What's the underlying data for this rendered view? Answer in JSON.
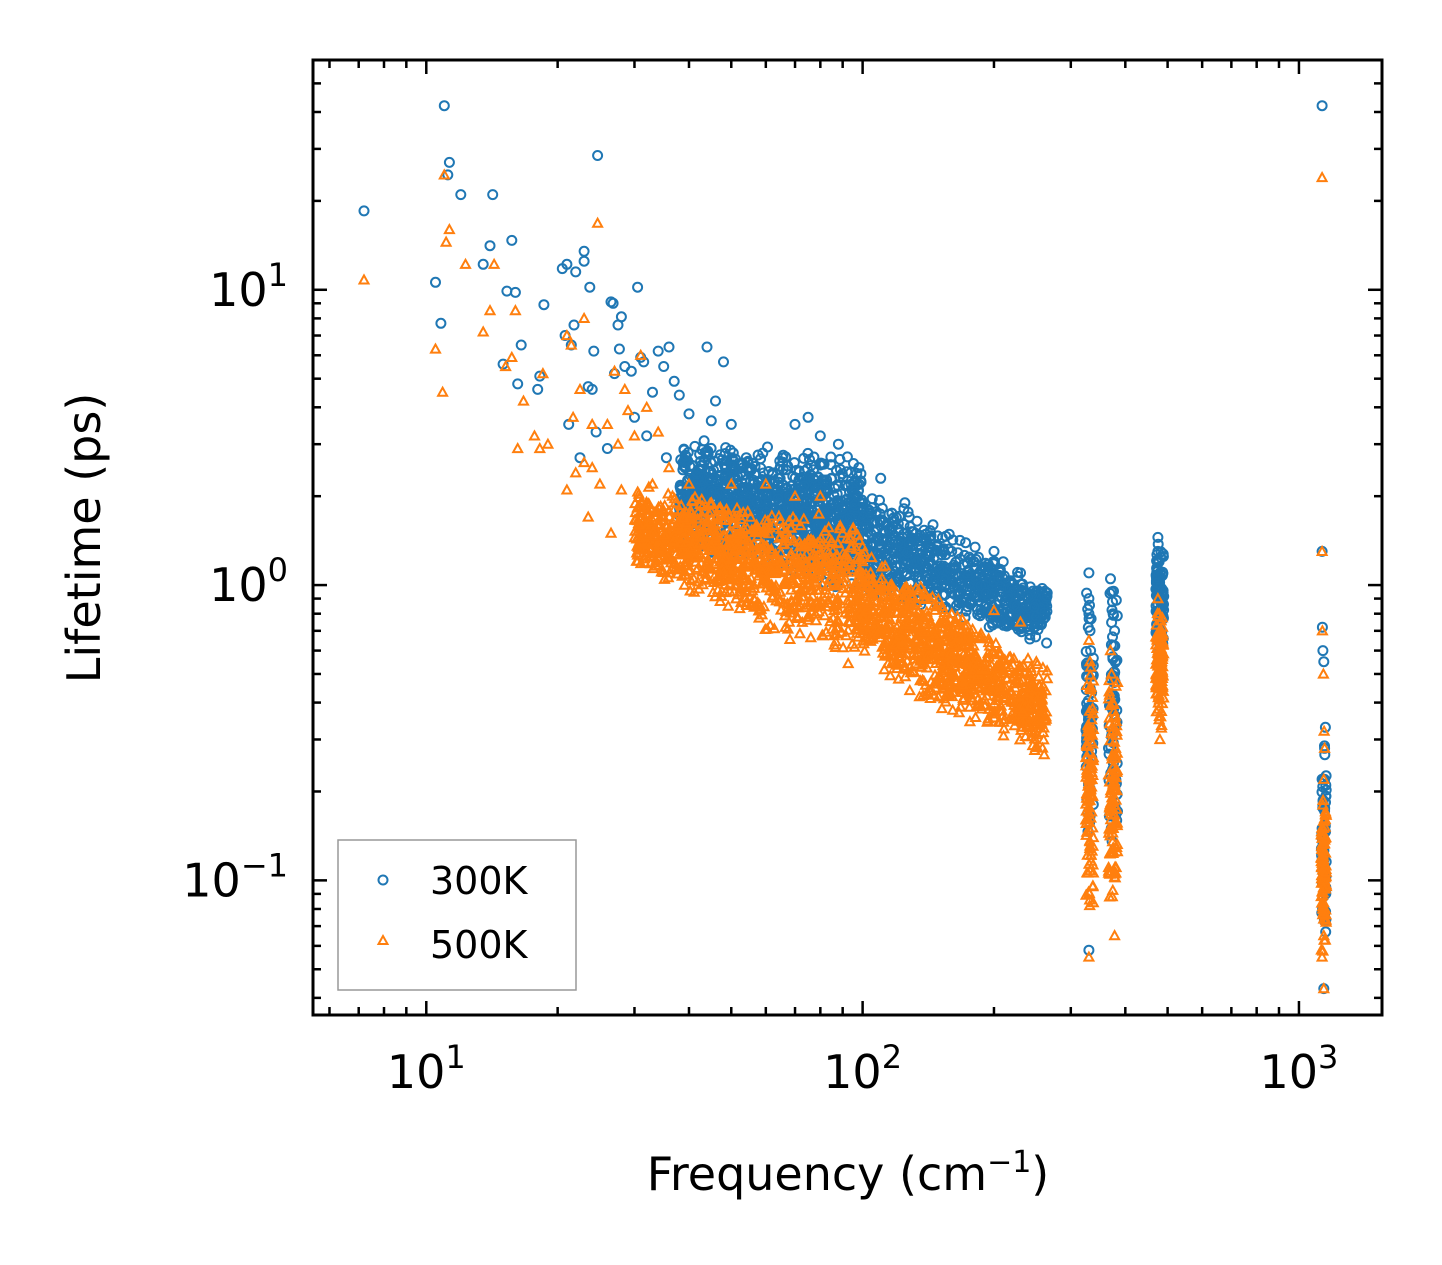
{
  "chart_data": {
    "type": "scatter",
    "xscale": "log",
    "yscale": "log",
    "xlim": [
      5.5,
      1550
    ],
    "ylim": [
      0.035,
      60
    ],
    "x_ticks": [
      {
        "value": 10,
        "base": "10",
        "exp": "1"
      },
      {
        "value": 100,
        "base": "10",
        "exp": "2"
      },
      {
        "value": 1000,
        "base": "10",
        "exp": "3"
      }
    ],
    "y_ticks": [
      {
        "value": 0.1,
        "base": "10",
        "exp": "−1"
      },
      {
        "value": 1,
        "base": "10",
        "exp": "0"
      },
      {
        "value": 10,
        "base": "10",
        "exp": "1"
      }
    ],
    "xlabel": {
      "text": "Frequency (cm",
      "sup": "−1",
      "tail": ")"
    },
    "ylabel": "Lifetime (ps)",
    "legend_position": "lower-left",
    "series": [
      {
        "name": "300K",
        "marker": "circle",
        "color": "#1f77b4",
        "points": [
          [
            7.2,
            18.5
          ],
          [
            10.5,
            10.6
          ],
          [
            10.8,
            7.7
          ],
          [
            11,
            42
          ],
          [
            11.3,
            27
          ],
          [
            11.2,
            24.5
          ],
          [
            12,
            21
          ],
          [
            13.5,
            12.2
          ],
          [
            14,
            14.1
          ],
          [
            14.2,
            21
          ],
          [
            15,
            5.6
          ],
          [
            15.3,
            9.9
          ],
          [
            15.7,
            14.7
          ],
          [
            16,
            9.8
          ],
          [
            16.2,
            4.8
          ],
          [
            16.5,
            6.5
          ],
          [
            18,
            4.6
          ],
          [
            18.2,
            5.1
          ],
          [
            18.6,
            8.9
          ],
          [
            20.5,
            11.8
          ],
          [
            20.8,
            7
          ],
          [
            21,
            12.2
          ],
          [
            21.2,
            3.5
          ],
          [
            21.5,
            6.5
          ],
          [
            21.8,
            7.6
          ],
          [
            22,
            11.5
          ],
          [
            22.5,
            2.7
          ],
          [
            23,
            12.5
          ],
          [
            23,
            13.5
          ],
          [
            23.5,
            4.7
          ],
          [
            23.7,
            10.2
          ],
          [
            24.2,
            6.2
          ],
          [
            24.7,
            28.5
          ],
          [
            24,
            4.6
          ],
          [
            24.5,
            3.3
          ],
          [
            26,
            2.9
          ],
          [
            26.5,
            9.1
          ],
          [
            26.8,
            9
          ],
          [
            27,
            5.2
          ],
          [
            27.5,
            7.6
          ],
          [
            27.7,
            6.3
          ],
          [
            28,
            8.1
          ],
          [
            28.5,
            5.5
          ],
          [
            29.5,
            5.3
          ],
          [
            30,
            3.7
          ],
          [
            30.5,
            10.2
          ],
          [
            31,
            5.9
          ],
          [
            31.5,
            5.7
          ],
          [
            32,
            3.2
          ],
          [
            33,
            4.5
          ],
          [
            34,
            6.2
          ],
          [
            35,
            5.5
          ],
          [
            35.5,
            2.7
          ],
          [
            36,
            6.4
          ],
          [
            37,
            4.9
          ],
          [
            38,
            4.4
          ],
          [
            40,
            3.8
          ],
          [
            44,
            6.4
          ],
          [
            45,
            3.6
          ],
          [
            46,
            4.2
          ],
          [
            48,
            5.7
          ],
          [
            50,
            3.5
          ],
          [
            70,
            3.5
          ],
          [
            75,
            3.7
          ],
          [
            80,
            3.2
          ],
          [
            88,
            3
          ],
          [
            98,
            2.5
          ],
          [
            110,
            2.3
          ],
          [
            125,
            1.9
          ],
          [
            145,
            1.6
          ],
          [
            160,
            1.3
          ],
          [
            180,
            1.2
          ],
          [
            200,
            1.3
          ],
          [
            210,
            1.2
          ],
          [
            230,
            1.1
          ],
          [
            250,
            0.95
          ],
          [
            330,
            0.058
          ],
          [
            330,
            1.1
          ],
          [
            330,
            0.9
          ],
          [
            330,
            0.8
          ],
          [
            332,
            0.7
          ],
          [
            333,
            0.6
          ],
          [
            335,
            0.5
          ],
          [
            370,
            1.05
          ],
          [
            372,
            0.95
          ],
          [
            375,
            0.8
          ],
          [
            378,
            0.7
          ],
          [
            380,
            0.55
          ],
          [
            475,
            1.45
          ],
          [
            475,
            1.3
          ],
          [
            478,
            1.2
          ],
          [
            480,
            1.1
          ],
          [
            478,
            1.0
          ],
          [
            480,
            0.9
          ],
          [
            482,
            0.8
          ],
          [
            476,
            0.7
          ],
          [
            480,
            0.6
          ],
          [
            1130,
            42
          ],
          [
            1130,
            1.3
          ],
          [
            1132,
            0.72
          ],
          [
            1135,
            0.6
          ],
          [
            1140,
            0.55
          ],
          [
            1150,
            0.33
          ],
          [
            1145,
            0.28
          ],
          [
            1140,
            0.22
          ],
          [
            1135,
            0.18
          ],
          [
            1130,
            0.15
          ],
          [
            1140,
            0.12
          ],
          [
            1145,
            0.1
          ],
          [
            1135,
            0.08
          ],
          [
            1140,
            0.043
          ]
        ],
        "bands": [
          {
            "x": [
              38,
              100
            ],
            "lo": [
              1.35,
              0.9
            ],
            "hi": [
              3.2,
              2.8
            ],
            "n": 1100
          },
          {
            "x": [
              100,
              265
            ],
            "lo": [
              0.9,
              0.62
            ],
            "hi": [
              2.3,
              1.0
            ],
            "n": 700
          },
          {
            "x": [
              325,
              338
            ],
            "lo": [
              0.12,
              0.12
            ],
            "hi": [
              1.05,
              1.05
            ],
            "n": 70
          },
          {
            "x": [
              366,
              384
            ],
            "lo": [
              0.12,
              0.12
            ],
            "hi": [
              1.05,
              1.05
            ],
            "n": 70
          },
          {
            "x": [
              470,
              490
            ],
            "lo": [
              0.6,
              0.6
            ],
            "hi": [
              1.4,
              1.4
            ],
            "n": 90
          },
          {
            "x": [
              1125,
              1155
            ],
            "lo": [
              0.06,
              0.06
            ],
            "hi": [
              0.3,
              0.3
            ],
            "n": 60
          }
        ]
      },
      {
        "name": "500K",
        "marker": "triangle",
        "color": "#ff7f0e",
        "points": [
          [
            7.2,
            10.8
          ],
          [
            10.5,
            6.3
          ],
          [
            10.9,
            4.5
          ],
          [
            11,
            24.5
          ],
          [
            11.1,
            14.5
          ],
          [
            11.3,
            16
          ],
          [
            12.3,
            12.2
          ],
          [
            13.5,
            7.2
          ],
          [
            14,
            8.5
          ],
          [
            14.3,
            12.2
          ],
          [
            15.2,
            5.5
          ],
          [
            15.7,
            5.9
          ],
          [
            16,
            8.5
          ],
          [
            16.2,
            2.9
          ],
          [
            16.7,
            4.2
          ],
          [
            17.7,
            3.2
          ],
          [
            18.2,
            2.9
          ],
          [
            18.5,
            5.2
          ],
          [
            19,
            3
          ],
          [
            21,
            2.1
          ],
          [
            21,
            7
          ],
          [
            21.5,
            6.5
          ],
          [
            21.7,
            3.7
          ],
          [
            22,
            2.4
          ],
          [
            22.5,
            4.6
          ],
          [
            23,
            8
          ],
          [
            23,
            2.6
          ],
          [
            23.5,
            1.7
          ],
          [
            24,
            2.5
          ],
          [
            24,
            3.5
          ],
          [
            24.7,
            16.8
          ],
          [
            25,
            2.2
          ],
          [
            26,
            3.5
          ],
          [
            26.5,
            1.5
          ],
          [
            27,
            5.3
          ],
          [
            27.5,
            3
          ],
          [
            28,
            2.1
          ],
          [
            28.5,
            4.6
          ],
          [
            29,
            3.9
          ],
          [
            30,
            3.2
          ],
          [
            31,
            6
          ],
          [
            32,
            4
          ],
          [
            33,
            2.2
          ],
          [
            34,
            3.3
          ],
          [
            36,
            2.5
          ],
          [
            37,
            1.8
          ],
          [
            40,
            2.2
          ],
          [
            45,
            1.9
          ],
          [
            50,
            2.2
          ],
          [
            60,
            2.2
          ],
          [
            70,
            2
          ],
          [
            80,
            2
          ],
          [
            90,
            1.5
          ],
          [
            100,
            1.2
          ],
          [
            130,
            0.9
          ],
          [
            160,
            0.8
          ],
          [
            200,
            0.82
          ],
          [
            230,
            0.75
          ],
          [
            250,
            0.55
          ],
          [
            330,
            0.055
          ],
          [
            330,
            0.65
          ],
          [
            332,
            0.55
          ],
          [
            334,
            0.45
          ],
          [
            335,
            0.35
          ],
          [
            370,
            0.6
          ],
          [
            372,
            0.5
          ],
          [
            375,
            0.4
          ],
          [
            380,
            0.28
          ],
          [
            378,
            0.065
          ],
          [
            475,
            0.9
          ],
          [
            478,
            0.8
          ],
          [
            480,
            0.7
          ],
          [
            476,
            0.6
          ],
          [
            480,
            0.5
          ],
          [
            482,
            0.45
          ],
          [
            478,
            0.35
          ],
          [
            480,
            0.3
          ],
          [
            1130,
            24
          ],
          [
            1130,
            1.3
          ],
          [
            1132,
            0.7
          ],
          [
            1138,
            0.5
          ],
          [
            1142,
            0.32
          ],
          [
            1145,
            0.28
          ],
          [
            1140,
            0.22
          ],
          [
            1135,
            0.18
          ],
          [
            1130,
            0.12
          ],
          [
            1145,
            0.1
          ],
          [
            1135,
            0.08
          ],
          [
            1140,
            0.065
          ],
          [
            1130,
            0.055
          ],
          [
            1140,
            0.043
          ]
        ],
        "bands": [
          {
            "x": [
              30,
              100
            ],
            "lo": [
              1.1,
              0.5
            ],
            "hi": [
              2.2,
              1.7
            ],
            "n": 1000
          },
          {
            "x": [
              100,
              265
            ],
            "lo": [
              0.5,
              0.25
            ],
            "hi": [
              1.4,
              0.55
            ],
            "n": 900
          },
          {
            "x": [
              325,
              338
            ],
            "lo": [
              0.075,
              0.075
            ],
            "hi": [
              0.55,
              0.55
            ],
            "n": 110
          },
          {
            "x": [
              366,
              384
            ],
            "lo": [
              0.065,
              0.065
            ],
            "hi": [
              0.55,
              0.55
            ],
            "n": 110
          },
          {
            "x": [
              470,
              490
            ],
            "lo": [
              0.32,
              0.32
            ],
            "hi": [
              0.85,
              0.85
            ],
            "n": 110
          },
          {
            "x": [
              1125,
              1155
            ],
            "lo": [
              0.055,
              0.055
            ],
            "hi": [
              0.2,
              0.2
            ],
            "n": 90
          }
        ]
      }
    ]
  }
}
